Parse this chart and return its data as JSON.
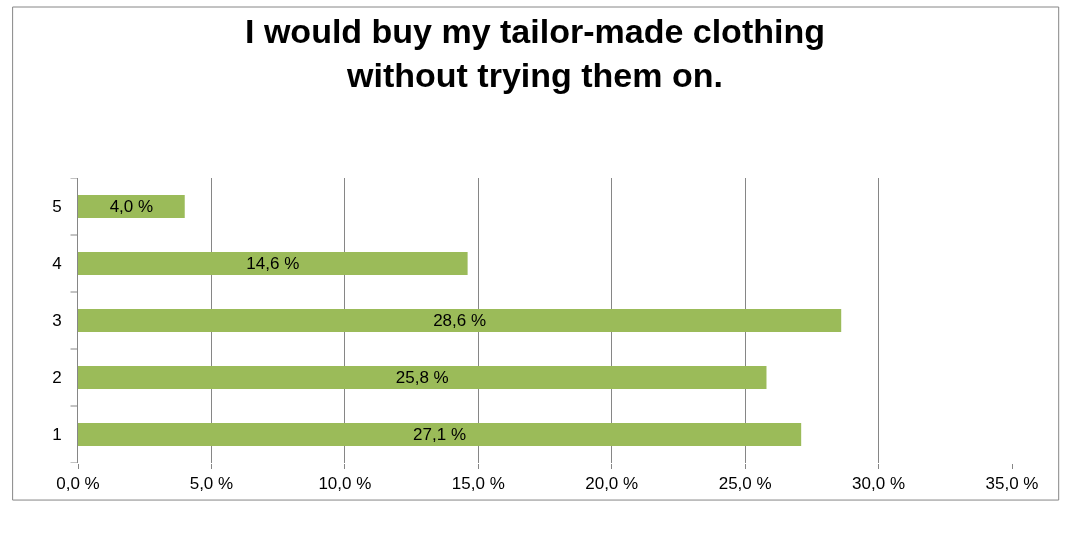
{
  "chart_data": {
    "type": "bar",
    "orientation": "horizontal",
    "title": "I would buy my tailor-made clothing\nwithout trying them on.",
    "categories": [
      "5",
      "4",
      "3",
      "2",
      "1"
    ],
    "values": [
      4.0,
      14.6,
      28.6,
      25.8,
      27.1
    ],
    "value_labels": [
      "4,0 %",
      "14,6 %",
      "28,6 %",
      "25,8 %",
      "27,1 %"
    ],
    "color": "#9bbb59",
    "xlim": [
      0,
      35
    ],
    "xticks": [
      {
        "value": 0,
        "label": "0,0 %"
      },
      {
        "value": 5,
        "label": "5,0 %"
      },
      {
        "value": 10,
        "label": "10,0 %"
      },
      {
        "value": 15,
        "label": "15,0 %"
      },
      {
        "value": 20,
        "label": "20,0 %"
      },
      {
        "value": 25,
        "label": "25,0 %"
      },
      {
        "value": 30,
        "label": "30,0 %"
      },
      {
        "value": 35,
        "label": "35,0 %"
      }
    ],
    "grid": "x",
    "legend": false
  }
}
